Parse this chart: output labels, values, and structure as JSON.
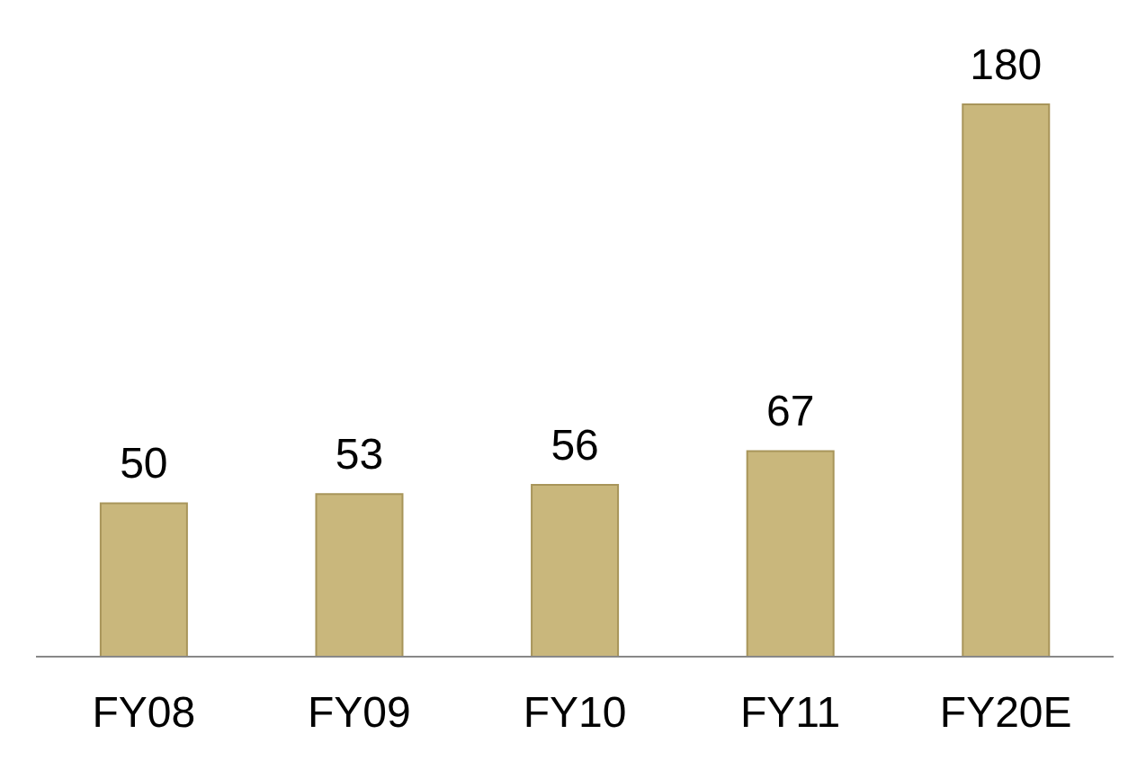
{
  "chart_data": {
    "type": "bar",
    "categories": [
      "FY08",
      "FY09",
      "FY10",
      "FY11",
      "FY20E"
    ],
    "values": [
      50,
      53,
      56,
      67,
      180
    ],
    "color": "#c9b77c",
    "data_labels": true
  }
}
